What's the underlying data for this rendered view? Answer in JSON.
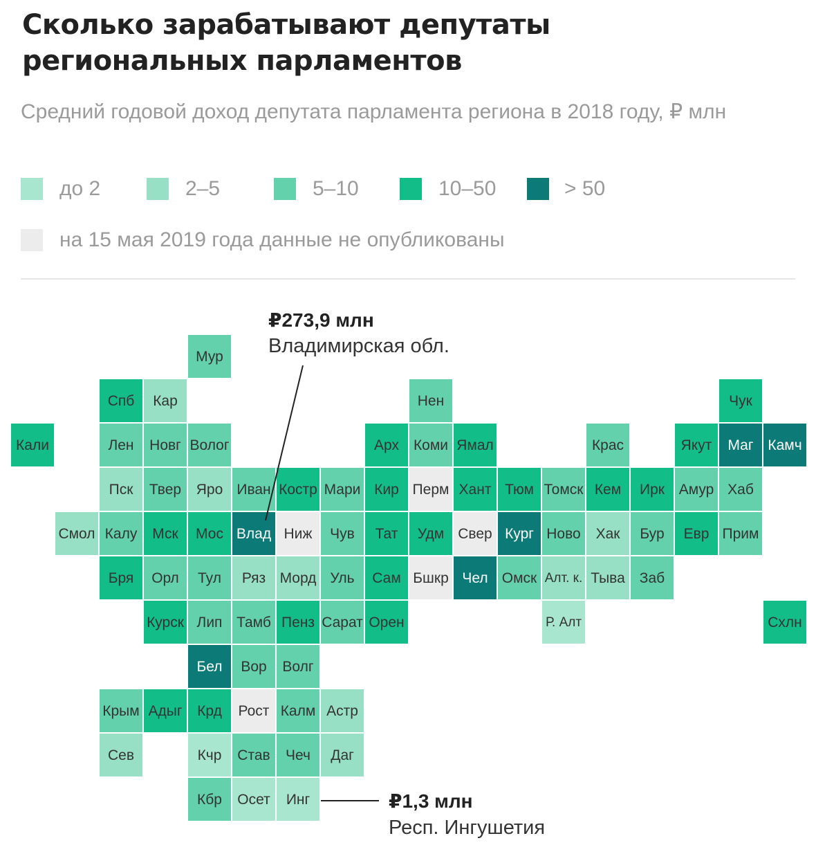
{
  "title": "Сколько зарабатывают депутаты региональных парламентов",
  "subtitle": "Средний годовой доход депутата парламента региона в 2018 году, ₽ млн",
  "colors": {
    "c1": "#a8e6d0",
    "c2": "#97e0c6",
    "c3": "#63d1ac",
    "c4": "#13bd87",
    "c5": "#0c7a76",
    "na": "#ececec"
  },
  "legend": [
    {
      "label": "до 2",
      "class": "c1"
    },
    {
      "label": "2–5",
      "class": "c2"
    },
    {
      "label": "5–10",
      "class": "c3"
    },
    {
      "label": "10–50",
      "class": "c4"
    },
    {
      "label": "> 50",
      "class": "c5"
    }
  ],
  "legend_na": {
    "label": "на 15 мая 2019 года данные не опубликованы",
    "class": "na"
  },
  "chart_data": {
    "type": "heatmap",
    "tiles": [
      {
        "label": "Мур",
        "col": 4,
        "row": 0,
        "class": "c3"
      },
      {
        "label": "Спб",
        "col": 2,
        "row": 1,
        "class": "c4"
      },
      {
        "label": "Кар",
        "col": 3,
        "row": 1,
        "class": "c2"
      },
      {
        "label": "Нен",
        "col": 9,
        "row": 1,
        "class": "c3"
      },
      {
        "label": "Чук",
        "col": 16,
        "row": 1,
        "class": "c4"
      },
      {
        "label": "Кали",
        "col": 0,
        "row": 2,
        "class": "c4"
      },
      {
        "label": "Лен",
        "col": 2,
        "row": 2,
        "class": "c3"
      },
      {
        "label": "Новг",
        "col": 3,
        "row": 2,
        "class": "c3"
      },
      {
        "label": "Волог",
        "col": 4,
        "row": 2,
        "class": "c3"
      },
      {
        "label": "Арх",
        "col": 8,
        "row": 2,
        "class": "c4"
      },
      {
        "label": "Коми",
        "col": 9,
        "row": 2,
        "class": "c3"
      },
      {
        "label": "Ямал",
        "col": 10,
        "row": 2,
        "class": "c4"
      },
      {
        "label": "Крас",
        "col": 13,
        "row": 2,
        "class": "c3"
      },
      {
        "label": "Якут",
        "col": 15,
        "row": 2,
        "class": "c4"
      },
      {
        "label": "Маг",
        "col": 16,
        "row": 2,
        "class": "c5"
      },
      {
        "label": "Камч",
        "col": 17,
        "row": 2,
        "class": "c5"
      },
      {
        "label": "Пск",
        "col": 2,
        "row": 3,
        "class": "c2"
      },
      {
        "label": "Твер",
        "col": 3,
        "row": 3,
        "class": "c3"
      },
      {
        "label": "Яро",
        "col": 4,
        "row": 3,
        "class": "c2"
      },
      {
        "label": "Иван",
        "col": 5,
        "row": 3,
        "class": "c3"
      },
      {
        "label": "Костр",
        "col": 6,
        "row": 3,
        "class": "c4"
      },
      {
        "label": "Мари",
        "col": 7,
        "row": 3,
        "class": "c3"
      },
      {
        "label": "Кир",
        "col": 8,
        "row": 3,
        "class": "c4"
      },
      {
        "label": "Перм",
        "col": 9,
        "row": 3,
        "class": "na"
      },
      {
        "label": "Хант",
        "col": 10,
        "row": 3,
        "class": "c4"
      },
      {
        "label": "Тюм",
        "col": 11,
        "row": 3,
        "class": "c4"
      },
      {
        "label": "Томск",
        "col": 12,
        "row": 3,
        "class": "c3"
      },
      {
        "label": "Кем",
        "col": 13,
        "row": 3,
        "class": "c4"
      },
      {
        "label": "Ирк",
        "col": 14,
        "row": 3,
        "class": "c4"
      },
      {
        "label": "Амур",
        "col": 15,
        "row": 3,
        "class": "c3"
      },
      {
        "label": "Хаб",
        "col": 16,
        "row": 3,
        "class": "c3"
      },
      {
        "label": "Смол",
        "col": 1,
        "row": 4,
        "class": "c2"
      },
      {
        "label": "Калу",
        "col": 2,
        "row": 4,
        "class": "c3"
      },
      {
        "label": "Мск",
        "col": 3,
        "row": 4,
        "class": "c4"
      },
      {
        "label": "Мос",
        "col": 4,
        "row": 4,
        "class": "c4"
      },
      {
        "label": "Влад",
        "col": 5,
        "row": 4,
        "class": "c5"
      },
      {
        "label": "Ниж",
        "col": 6,
        "row": 4,
        "class": "na"
      },
      {
        "label": "Чув",
        "col": 7,
        "row": 4,
        "class": "c3"
      },
      {
        "label": "Тат",
        "col": 8,
        "row": 4,
        "class": "c4"
      },
      {
        "label": "Удм",
        "col": 9,
        "row": 4,
        "class": "c4"
      },
      {
        "label": "Свер",
        "col": 10,
        "row": 4,
        "class": "na"
      },
      {
        "label": "Кург",
        "col": 11,
        "row": 4,
        "class": "c5"
      },
      {
        "label": "Ново",
        "col": 12,
        "row": 4,
        "class": "c3"
      },
      {
        "label": "Хак",
        "col": 13,
        "row": 4,
        "class": "c2"
      },
      {
        "label": "Бур",
        "col": 14,
        "row": 4,
        "class": "c3"
      },
      {
        "label": "Евр",
        "col": 15,
        "row": 4,
        "class": "c4"
      },
      {
        "label": "Прим",
        "col": 16,
        "row": 4,
        "class": "c3"
      },
      {
        "label": "Бря",
        "col": 2,
        "row": 5,
        "class": "c4"
      },
      {
        "label": "Орл",
        "col": 3,
        "row": 5,
        "class": "c3"
      },
      {
        "label": "Тул",
        "col": 4,
        "row": 5,
        "class": "c3"
      },
      {
        "label": "Ряз",
        "col": 5,
        "row": 5,
        "class": "c2"
      },
      {
        "label": "Морд",
        "col": 6,
        "row": 5,
        "class": "c2"
      },
      {
        "label": "Уль",
        "col": 7,
        "row": 5,
        "class": "c3"
      },
      {
        "label": "Сам",
        "col": 8,
        "row": 5,
        "class": "c4"
      },
      {
        "label": "Бшкр",
        "col": 9,
        "row": 5,
        "class": "na"
      },
      {
        "label": "Чел",
        "col": 10,
        "row": 5,
        "class": "c5"
      },
      {
        "label": "Омск",
        "col": 11,
        "row": 5,
        "class": "c3"
      },
      {
        "label": "Алт. к.",
        "col": 12,
        "row": 5,
        "class": "c2"
      },
      {
        "label": "Тыва",
        "col": 13,
        "row": 5,
        "class": "c2"
      },
      {
        "label": "Заб",
        "col": 14,
        "row": 5,
        "class": "c3"
      },
      {
        "label": "Курск",
        "col": 3,
        "row": 6,
        "class": "c4"
      },
      {
        "label": "Лип",
        "col": 4,
        "row": 6,
        "class": "c3"
      },
      {
        "label": "Тамб",
        "col": 5,
        "row": 6,
        "class": "c3"
      },
      {
        "label": "Пенз",
        "col": 6,
        "row": 6,
        "class": "c4"
      },
      {
        "label": "Сарат",
        "col": 7,
        "row": 6,
        "class": "c3"
      },
      {
        "label": "Орен",
        "col": 8,
        "row": 6,
        "class": "c4"
      },
      {
        "label": "Р. Алт",
        "col": 12,
        "row": 6,
        "class": "c1"
      },
      {
        "label": "Схлн",
        "col": 17,
        "row": 6,
        "class": "c4"
      },
      {
        "label": "Бел",
        "col": 4,
        "row": 7,
        "class": "c5"
      },
      {
        "label": "Вор",
        "col": 5,
        "row": 7,
        "class": "c3"
      },
      {
        "label": "Волг",
        "col": 6,
        "row": 7,
        "class": "c3"
      },
      {
        "label": "Крым",
        "col": 2,
        "row": 8,
        "class": "c3"
      },
      {
        "label": "Адыг",
        "col": 3,
        "row": 8,
        "class": "c4"
      },
      {
        "label": "Крд",
        "col": 4,
        "row": 8,
        "class": "c4"
      },
      {
        "label": "Рост",
        "col": 5,
        "row": 8,
        "class": "na"
      },
      {
        "label": "Калм",
        "col": 6,
        "row": 8,
        "class": "c3"
      },
      {
        "label": "Астр",
        "col": 7,
        "row": 8,
        "class": "c2"
      },
      {
        "label": "Сев",
        "col": 2,
        "row": 9,
        "class": "c2"
      },
      {
        "label": "Кчр",
        "col": 4,
        "row": 9,
        "class": "c1"
      },
      {
        "label": "Став",
        "col": 5,
        "row": 9,
        "class": "c3"
      },
      {
        "label": "Чеч",
        "col": 6,
        "row": 9,
        "class": "c3"
      },
      {
        "label": "Даг",
        "col": 7,
        "row": 9,
        "class": "c2"
      },
      {
        "label": "Кбр",
        "col": 4,
        "row": 10,
        "class": "c3"
      },
      {
        "label": "Осет",
        "col": 5,
        "row": 10,
        "class": "c1"
      },
      {
        "label": "Инг",
        "col": 6,
        "row": 10,
        "class": "c1"
      }
    ],
    "annotations": [
      {
        "value": "₽273,9 млн",
        "region": "Владимирская обл."
      },
      {
        "value": "₽1,3 млн",
        "region": "Респ. Ингушетия"
      }
    ]
  }
}
